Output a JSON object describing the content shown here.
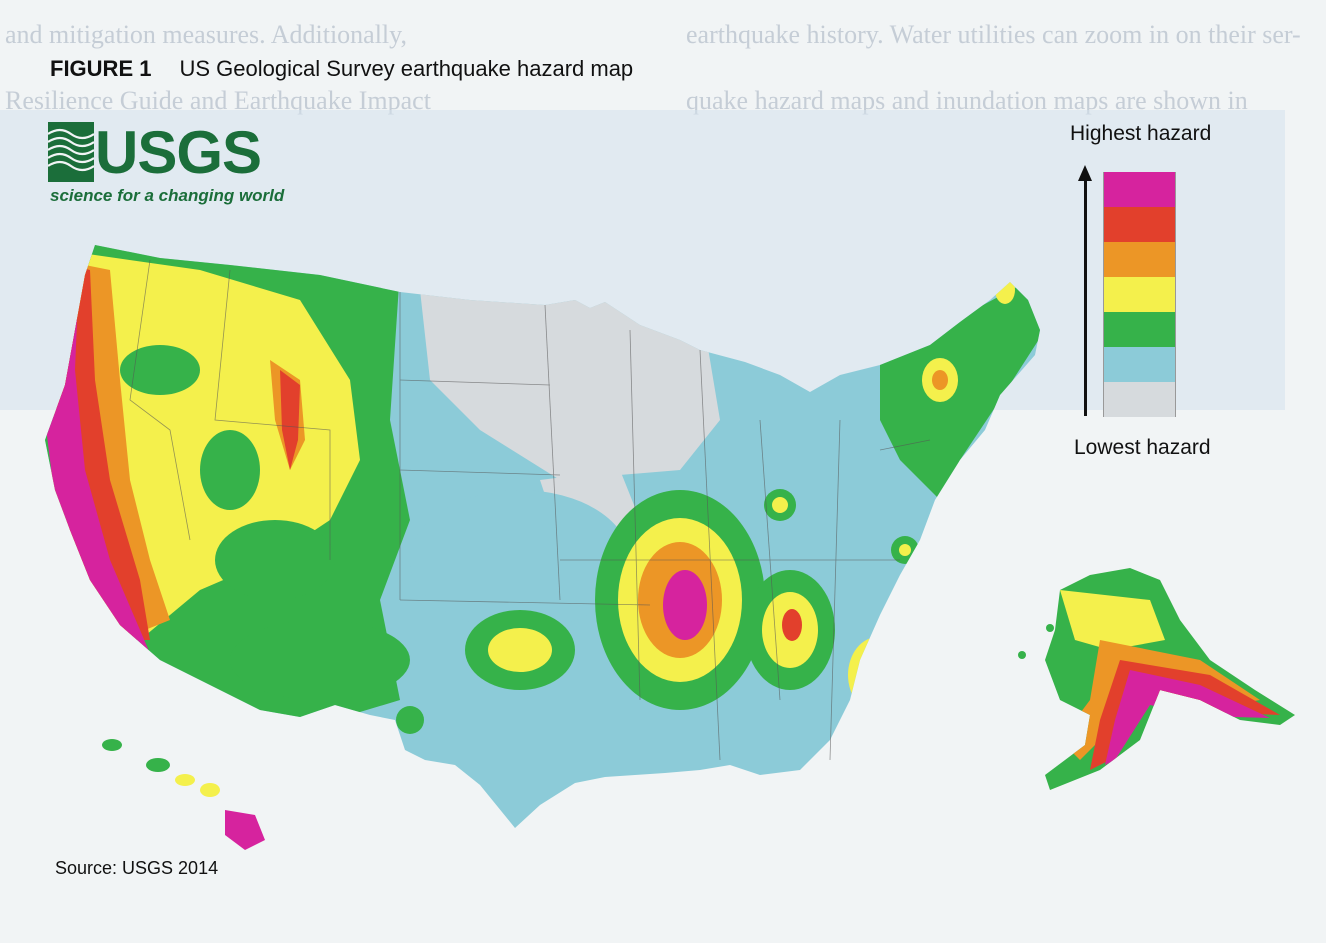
{
  "figure": {
    "number": "FIGURE 1",
    "title": "US Geological Survey earthquake hazard map"
  },
  "logo": {
    "word": "USGS",
    "tagline": "science for a changing world"
  },
  "legend": {
    "top_label": "Highest hazard",
    "bottom_label": "Lowest hazard",
    "levels": [
      "#d6239e",
      "#e2402c",
      "#ec9626",
      "#f4f04c",
      "#36b24a",
      "#8ccbd8",
      "#d6dadd"
    ]
  },
  "source": "Source: USGS 2014",
  "background_text": [
    "and mitigation measures. Additionally,",
    "earthquake history. Water utilities can zoom in on their ser-",
    "Resilience Guide and Earthquake Impact",
    "quake hazard maps and inundation maps are shown in"
  ],
  "colors": {
    "highest": "#d6239e",
    "high": "#e2402c",
    "medium_high": "#ec9626",
    "medium": "#f4f04c",
    "medium_low": "#36b24a",
    "low": "#8ccbd8",
    "lowest": "#d6dadd"
  }
}
